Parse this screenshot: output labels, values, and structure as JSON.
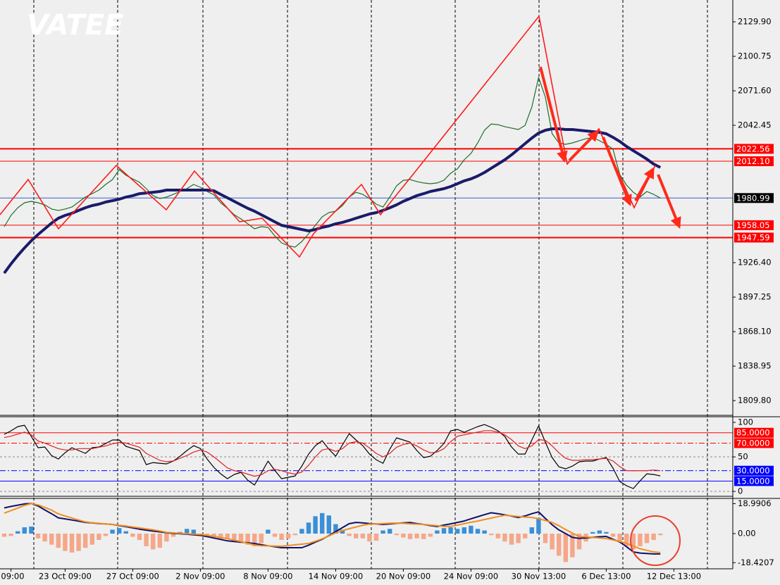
{
  "chart_data": [
    {
      "type": "line",
      "watermark": "VATEE",
      "ylim": [
        1797.35,
        2148.34
      ],
      "yticks": [
        {
          "value": 2129.9,
          "label": "2129.90"
        },
        2100.75,
        {
          "value": 2071.6,
          "label": "2071.60"
        },
        2042.45,
        {
          "value": 1926.4,
          "label": "1926.40"
        },
        1897.25,
        {
          "value": 1868.1,
          "label": "1868.10"
        },
        1838.95,
        {
          "value": 1809.8,
          "label": "1809.80"
        }
      ],
      "levels": [
        {
          "value": 2022.56,
          "color": "#ff0000",
          "box": "#ff0000"
        },
        {
          "value": 2012.1,
          "label": "2012.10",
          "color": "#ff0000",
          "box": "#ff0000"
        },
        {
          "value": 1980.99,
          "color": "#3a5fcd",
          "box": "#000000"
        },
        {
          "value": 1958.05,
          "color": "#ff0000",
          "box": "#ff0000"
        },
        {
          "value": 1947.59,
          "color": "#ff0000",
          "box": "#ff0000"
        }
      ],
      "series": [
        {
          "color": "#1e6e2a",
          "values": [
            1956.8,
            1966.3,
            1972.8,
            1977.0,
            1978.2,
            1977.0,
            1975.2,
            1971.7,
            1970.5,
            1971.7,
            1973.4,
            1977.6,
            1981.8,
            1984.7,
            1987.7,
            1992.5,
            1996.6,
            2005.0,
            2000.2,
            1997.2,
            1994.3,
            1988.9,
            1983.0,
            1980.6,
            1981.8,
            1984.1,
            1986.5,
            1988.9,
            1992.5,
            1990.1,
            1986.5,
            1983.6,
            1977.0,
            1972.3,
            1966.9,
            1963.3,
            1959.2,
            1955.0,
            1956.8,
            1956.2,
            1949.0,
            1943.1,
            1940.7,
            1939.5,
            1944.3,
            1950.8,
            1958.0,
            1965.1,
            1968.7,
            1969.9,
            1974.6,
            1981.8,
            1985.9,
            1984.1,
            1980.6,
            1975.8,
            1973.4,
            1981.8,
            1991.3,
            1996.0,
            1996.6,
            1994.9,
            1993.7,
            1993.1,
            1993.7,
            1996.0,
            2002.0,
            2005.6,
            2013.3,
            2018.7,
            2027.6,
            2038.3,
            2043.6,
            2043.0,
            2041.3,
            2040.1,
            2038.9,
            2042.4,
            2057.9,
            2082.9,
            2066.2,
            2035.3,
            2027.6,
            2026.4,
            2027.6,
            2029.4,
            2031.1,
            2032.3,
            2029.4,
            2026.4,
            2022.2,
            2000.8,
            1991.9,
            1985.9,
            1981.8,
            1986.5,
            1984.1,
            1981.0,
            null,
            null
          ]
        },
        {
          "color": "#1b1b6b",
          "values": [
            1917.5,
            1925.3,
            1932.4,
            1938.9,
            1944.9,
            1950.2,
            1955.0,
            1959.8,
            1963.9,
            1966.3,
            1968.1,
            1970.5,
            1972.8,
            1974.6,
            1975.8,
            1977.6,
            1978.8,
            1980.0,
            1981.8,
            1983.0,
            1984.7,
            1985.3,
            1985.9,
            1986.5,
            1987.7,
            1987.7,
            1987.7,
            1987.7,
            1987.7,
            1987.7,
            1987.7,
            1987.1,
            1984.1,
            1981.2,
            1978.2,
            1975.2,
            1972.3,
            1969.9,
            1966.9,
            1963.9,
            1960.9,
            1958.0,
            1956.8,
            1955.6,
            1954.4,
            1953.2,
            1954.4,
            1956.2,
            1957.4,
            1959.2,
            1960.4,
            1962.1,
            1963.9,
            1965.7,
            1967.5,
            1968.7,
            1970.5,
            1972.8,
            1975.2,
            1978.2,
            1980.6,
            1983.0,
            1984.7,
            1986.5,
            1987.7,
            1988.9,
            1990.7,
            1993.1,
            1995.5,
            1997.2,
            1999.6,
            2002.6,
            2006.2,
            2009.7,
            2013.3,
            2017.5,
            2022.2,
            2027.0,
            2031.7,
            2035.9,
            2038.3,
            2039.5,
            2039.5,
            2038.9,
            2038.9,
            2038.3,
            2037.7,
            2037.1,
            2036.5,
            2035.3,
            2032.3,
            2028.8,
            2024.6,
            2021.0,
            2017.5,
            2013.9,
            2009.7,
            2006.8,
            null,
            null
          ]
        }
      ]
    },
    {
      "type": "line",
      "ylim": [
        -7.1,
        108.2
      ],
      "yticks": [
        100,
        50,
        0
      ],
      "levels": [
        {
          "value": 85,
          "label": "85.0000",
          "color": "#ff0000",
          "box": "#ff0000",
          "style": "solid"
        },
        {
          "value": 70,
          "label": "70.0000",
          "color": "#ff0000",
          "box": "#ff0000",
          "style": "dashdot"
        },
        {
          "value": 30,
          "label": "30.0000",
          "color": "#0000ff",
          "box": "#0000ff",
          "style": "dashdot"
        },
        {
          "value": 15,
          "label": "15.0000",
          "color": "#0000ff",
          "box": "#0000ff",
          "style": "solid"
        }
      ],
      "series": [
        {
          "color": "#000000",
          "values": [
            82.7,
            87.8,
            93.9,
            95.9,
            79.6,
            63.3,
            64.3,
            52.0,
            46.9,
            56.1,
            63.3,
            59.2,
            55.1,
            63.3,
            64.3,
            69.4,
            74.5,
            74.5,
            65.3,
            62.2,
            59.2,
            38.8,
            41.8,
            40.8,
            39.8,
            43.9,
            51.0,
            59.2,
            66.3,
            62.2,
            46.9,
            34.7,
            25.5,
            18.4,
            24.5,
            27.6,
            16.3,
            9.2,
            26.5,
            43.9,
            30.6,
            18.4,
            20.4,
            22.4,
            36.7,
            54.1,
            66.3,
            73.5,
            61.2,
            51.0,
            67.3,
            83.7,
            74.5,
            66.3,
            54.1,
            45.9,
            40.8,
            61.2,
            77.6,
            74.5,
            71.4,
            59.2,
            49.0,
            51.0,
            59.2,
            69.4,
            87.8,
            89.8,
            85.7,
            89.8,
            93.9,
            96.9,
            92.9,
            87.8,
            79.6,
            64.3,
            54.1,
            54.1,
            74.5,
            94.9,
            71.4,
            49.0,
            35.7,
            32.7,
            36.7,
            42.9,
            43.9,
            43.9,
            46.9,
            49.0,
            33.7,
            14.3,
            8.2,
            4.1,
            15.3,
            25.5,
            24.5,
            22.4,
            null,
            null
          ]
        },
        {
          "color": "#e02020",
          "values": [
            78,
            80,
            83,
            86,
            82,
            73,
            70,
            66,
            62,
            60,
            60,
            62,
            62,
            62,
            64,
            66,
            69,
            71,
            70,
            67,
            64,
            55,
            50,
            45,
            43,
            44,
            48,
            52,
            57,
            60,
            57,
            50,
            42,
            34,
            30,
            28,
            25,
            22,
            24,
            30,
            32,
            30,
            27,
            25,
            28,
            38,
            50,
            60,
            62,
            58,
            62,
            70,
            72,
            70,
            63,
            55,
            50,
            55,
            64,
            68,
            70,
            66,
            60,
            56,
            57,
            62,
            72,
            80,
            82,
            84,
            86,
            88,
            88,
            86,
            82,
            75,
            66,
            62,
            66,
            75,
            74,
            66,
            56,
            48,
            45,
            45,
            46,
            46,
            47,
            48,
            44,
            36,
            30,
            30,
            30,
            30,
            31,
            30,
            null,
            null
          ]
        }
      ]
    },
    {
      "type": "bar",
      "ylim": [
        -22.3,
        22.3
      ],
      "yticks": [
        18.9906,
        {
          "value": 0,
          "label": "0.00"
        },
        -18.4207
      ],
      "categories": [
        null,
        "09:00",
        null,
        null,
        null,
        null,
        null,
        null,
        null,
        "23 Oct 09:00",
        null,
        null,
        null,
        null,
        null,
        null,
        null,
        null,
        null,
        "27 Oct 09:00",
        null,
        null,
        null,
        null,
        null,
        null,
        null,
        null,
        null,
        "2 Nov 09:00",
        null,
        null,
        null,
        null,
        null,
        null,
        null,
        null,
        null,
        "8 Nov 09:00",
        null,
        null,
        null,
        null,
        null,
        null,
        null,
        null,
        null,
        "14 Nov 09:00",
        null,
        null,
        null,
        null,
        null,
        null,
        null,
        null,
        null,
        "20 Nov 09:00",
        null,
        null,
        null,
        null,
        null,
        null,
        null,
        null,
        null,
        "24 Nov 09:00",
        null,
        null,
        null,
        null,
        null,
        null,
        null,
        null,
        null,
        "30 Nov 13:00",
        null,
        null,
        null,
        null,
        null,
        null,
        null,
        null,
        null,
        "6 Dec 13:00",
        null,
        null,
        null,
        null,
        null,
        null,
        null,
        null,
        null,
        "12 Dec 13:00"
      ],
      "pos_color": "#3a8fd8",
      "neg_color": "#f5a789",
      "values": [
        -2.0,
        -1.5,
        1.5,
        4.0,
        4.5,
        -3.0,
        -5.0,
        -7.0,
        -9.0,
        -11.0,
        -12.0,
        -11.0,
        -9.0,
        -7.0,
        -4.0,
        -1.5,
        2.5,
        3.5,
        1.5,
        -2.0,
        -4.0,
        -8.0,
        -10.0,
        -9.0,
        -5.0,
        -2.0,
        1.0,
        3.0,
        2.5,
        -1.5,
        -2.0,
        -2.5,
        -3.5,
        -3.0,
        -4.5,
        -6.0,
        -7.0,
        -8.0,
        -6.0,
        2.5,
        -2.0,
        -4.0,
        -3.0,
        -1.0,
        3.0,
        7.0,
        11.0,
        13.0,
        11.5,
        6.0,
        2.5,
        -1.5,
        -3.0,
        -3.0,
        -5.0,
        -4.5,
        2.0,
        3.0,
        -1.0,
        -2.5,
        -3.5,
        -3.0,
        -3.5,
        -2.0,
        2.0,
        3.5,
        4.0,
        3.0,
        4.0,
        5.0,
        3.0,
        2.0,
        -1.0,
        -3.0,
        -5.0,
        -7.0,
        -6.0,
        -3.0,
        4.0,
        10.0,
        -6.0,
        -10.0,
        -14.0,
        -18.0,
        -15.0,
        -10.0,
        -5.0,
        1.0,
        2.0,
        1.0,
        -2.0,
        -5.0,
        -8.0,
        -10.0,
        -8.0,
        -6.0,
        -4.0,
        -1.0,
        null,
        null
      ],
      "series": [
        {
          "color": "#10106e",
          "values": [
            16.3,
            17.2,
            18.0,
            18.8,
            19.1,
            17.5,
            15.0,
            12.6,
            10.0,
            9.3,
            8.6,
            7.9,
            7.1,
            6.8,
            6.4,
            6.1,
            5.8,
            5.1,
            4.4,
            3.6,
            2.8,
            2.2,
            1.6,
            1.1,
            0.6,
            0.2,
            -0.1,
            -0.4,
            -0.8,
            -1.1,
            -1.9,
            -2.8,
            -3.7,
            -4.6,
            -5.0,
            -5.4,
            -5.8,
            -6.3,
            -7.0,
            -7.7,
            -8.3,
            -8.9,
            -8.9,
            -8.9,
            -8.9,
            -7.3,
            -5.4,
            -3.6,
            -1.3,
            1.3,
            3.8,
            6.3,
            7.1,
            6.8,
            6.4,
            6.1,
            5.8,
            6.1,
            6.5,
            6.8,
            7.0,
            6.4,
            5.8,
            5.1,
            4.5,
            5.4,
            6.2,
            7.1,
            8.0,
            9.4,
            10.7,
            12.0,
            13.2,
            12.6,
            11.9,
            11.1,
            10.2,
            11.2,
            12.6,
            13.8,
            9.6,
            5.6,
            2.3,
            0.0,
            -2.4,
            -3.0,
            -2.7,
            -2.3,
            -2.0,
            -1.8,
            -3.6,
            -5.3,
            -8.3,
            -11.6,
            -12.3,
            -12.6,
            -12.9,
            -12.9,
            null,
            null
          ]
        },
        {
          "color": "#f0901e",
          "values": [
            13.0,
            14.6,
            16.2,
            17.9,
            19.0,
            18.2,
            16.6,
            14.9,
            12.5,
            11.2,
            9.9,
            8.6,
            7.4,
            6.9,
            6.5,
            6.1,
            5.8,
            5.3,
            4.8,
            4.2,
            3.6,
            3.0,
            2.4,
            1.7,
            0.8,
            0.5,
            0.2,
            -0.1,
            -0.3,
            -0.6,
            -1.1,
            -1.7,
            -2.5,
            -3.2,
            -4.1,
            -5.1,
            -6.2,
            -7.2,
            -7.7,
            -7.8,
            -7.9,
            -8.0,
            -7.6,
            -7.1,
            -6.7,
            -6.2,
            -4.8,
            -3.3,
            -1.5,
            0.5,
            1.9,
            3.1,
            4.2,
            5.3,
            6.0,
            6.2,
            6.4,
            6.6,
            6.7,
            6.5,
            6.2,
            6.0,
            5.8,
            5.4,
            5.0,
            4.6,
            4.6,
            5.4,
            6.3,
            7.2,
            8.0,
            8.9,
            9.8,
            10.8,
            11.6,
            11.3,
            10.9,
            10.5,
            10.2,
            9.5,
            8.3,
            7.1,
            5.0,
            2.6,
            0.3,
            -1.8,
            -2.1,
            -2.4,
            -2.8,
            -3.1,
            -4.0,
            -5.0,
            -6.2,
            -7.9,
            -9.6,
            -10.6,
            -11.6,
            -12.0,
            null,
            null
          ]
        }
      ]
    }
  ]
}
